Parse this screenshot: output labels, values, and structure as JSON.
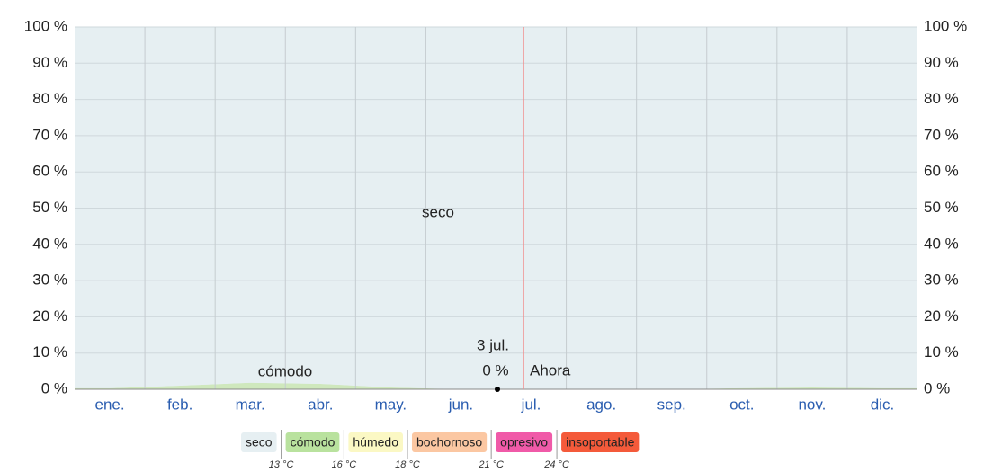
{
  "chart_data": {
    "type": "area",
    "categories": [
      "ene.",
      "feb.",
      "mar.",
      "abr.",
      "may.",
      "jun.",
      "jul.",
      "ago.",
      "sep.",
      "oct.",
      "nov.",
      "dic."
    ],
    "series": [
      {
        "name": "cómodo",
        "color": "#cfe8bd",
        "values": [
          0.3,
          1,
          1.8,
          1.5,
          0.5,
          0,
          0,
          0,
          0,
          0.3,
          0.5,
          0.3
        ]
      },
      {
        "name": "seco",
        "color": "#e6eff2",
        "values": [
          99.7,
          99,
          98.2,
          98.5,
          99.5,
          100,
          100,
          100,
          100,
          99.7,
          99.5,
          99.7
        ]
      }
    ],
    "ylim": [
      0,
      100
    ],
    "yticks": [
      {
        "value": 0,
        "label": "0 %"
      },
      {
        "value": 10,
        "label": "10 %"
      },
      {
        "value": 20,
        "label": "20 %"
      },
      {
        "value": 30,
        "label": "30 %"
      },
      {
        "value": 40,
        "label": "40 %"
      },
      {
        "value": 50,
        "label": "50 %"
      },
      {
        "value": 60,
        "label": "60 %"
      },
      {
        "value": 70,
        "label": "70 %"
      },
      {
        "value": 80,
        "label": "80 %"
      },
      {
        "value": 90,
        "label": "90 %"
      },
      {
        "value": 100,
        "label": "100 %"
      }
    ],
    "y2lim": [
      0,
      100
    ],
    "y2ticks": [
      {
        "value": 0,
        "label": "0 %"
      },
      {
        "value": 10,
        "label": "10 %"
      },
      {
        "value": 20,
        "label": "20 %"
      },
      {
        "value": 30,
        "label": "30 %"
      },
      {
        "value": 40,
        "label": "40 %"
      },
      {
        "value": 50,
        "label": "50 %"
      },
      {
        "value": 60,
        "label": "60 %"
      },
      {
        "value": 70,
        "label": "70 %"
      },
      {
        "value": 80,
        "label": "80 %"
      },
      {
        "value": 90,
        "label": "90 %"
      },
      {
        "value": 100,
        "label": "100 %"
      }
    ],
    "grid": true,
    "now_label": "Ahora",
    "point": {
      "x": "3 jul.",
      "value": 0,
      "value_label": "0 %"
    },
    "legend": [
      {
        "name": "seco",
        "color": "#e6eff2"
      },
      {
        "name": "cómodo",
        "color": "#b9e29e"
      },
      {
        "name": "húmedo",
        "color": "#fbf8c4"
      },
      {
        "name": "bochornoso",
        "color": "#fbc7a2"
      },
      {
        "name": "opresivo",
        "color": "#f05aa8"
      },
      {
        "name": "insoportable",
        "color": "#f45a3a"
      }
    ],
    "thresholds": [
      {
        "value": 13,
        "label": "13 °C"
      },
      {
        "value": 16,
        "label": "16 °C"
      },
      {
        "value": 18,
        "label": "18 °C"
      },
      {
        "value": 21,
        "label": "21 °C"
      },
      {
        "value": 24,
        "label": "24 °C"
      }
    ]
  }
}
